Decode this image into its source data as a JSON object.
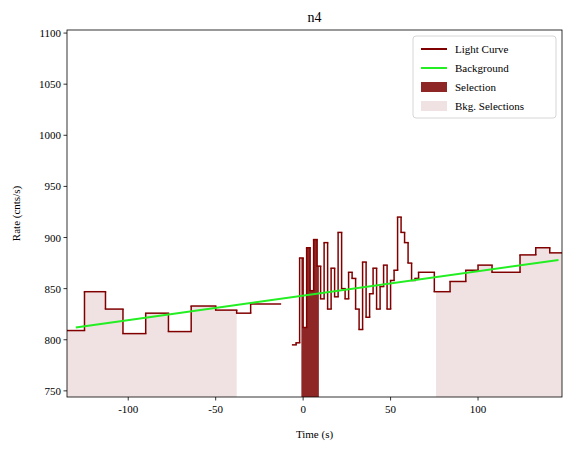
{
  "chart_data": {
    "type": "line",
    "title": "n4",
    "x_label": "Time (s)",
    "y_label": "Rate (cnts/s)",
    "xlim": [
      -135,
      148
    ],
    "ylim": [
      744,
      1103
    ],
    "xticks": [
      -100,
      -50,
      0,
      50,
      100
    ],
    "yticks": [
      750,
      800,
      850,
      900,
      950,
      1000,
      1050,
      1100
    ],
    "legend": "upper right",
    "series": [
      {
        "name": "Light Curve",
        "type": "step",
        "color": "#800000",
        "bins": [
          -135,
          -125,
          -113,
          -103,
          -90,
          -77,
          -64,
          -50,
          -38,
          -30,
          -13,
          -6,
          -4,
          -2,
          0,
          2,
          4,
          6,
          8,
          10,
          12,
          14,
          16,
          18,
          20,
          22,
          24,
          26,
          28,
          30,
          32,
          34,
          36,
          38,
          40,
          42,
          44,
          46,
          48,
          50,
          52,
          54,
          56,
          58,
          60,
          62,
          64,
          66,
          75,
          84,
          93,
          100,
          108,
          124,
          133,
          141,
          148
        ],
        "values": [
          809,
          847,
          830,
          806,
          826,
          808,
          833,
          829,
          826,
          835,
          null,
          795,
          797,
          880,
          812,
          890,
          848,
          898,
          872,
          840,
          895,
          830,
          870,
          842,
          905,
          850,
          840,
          866,
          860,
          830,
          810,
          876,
          822,
          845,
          870,
          830,
          852,
          873,
          830,
          858,
          868,
          920,
          905,
          895,
          875,
          858,
          860,
          866,
          847,
          857,
          868,
          873,
          866,
          883,
          890,
          885
        ]
      },
      {
        "name": "Background",
        "type": "line",
        "color": "#22ee22",
        "x": [
          -130,
          146
        ],
        "values": [
          812,
          878
        ]
      },
      {
        "name": "Selection",
        "type": "area",
        "color": "#8e2626",
        "ranges": [
          [
            -1,
            9
          ]
        ]
      },
      {
        "name": "Bkg. Selections",
        "type": "area",
        "color": "#f0e2e2",
        "ranges": [
          [
            -135,
            -38
          ],
          [
            76,
            148
          ]
        ]
      }
    ]
  }
}
